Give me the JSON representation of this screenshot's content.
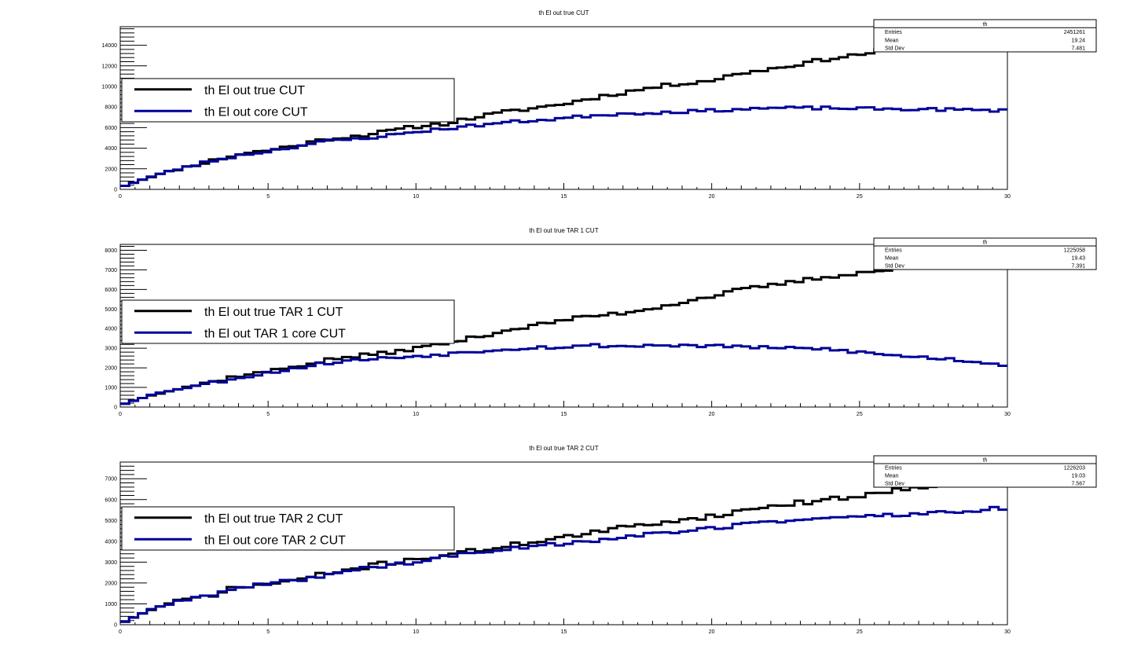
{
  "colors": {
    "black_series": "#000000",
    "blue_series": "#000099",
    "frame": "#000000",
    "background": "#ffffff"
  },
  "chart_data": [
    {
      "type": "line",
      "title": "th El out true CUT",
      "xlabel": "",
      "ylabel": "",
      "xlim": [
        0,
        30
      ],
      "ylim": [
        0,
        15800
      ],
      "grid": false,
      "legend_position": "top-left",
      "x_ticks": [
        "0",
        "5",
        "10",
        "15",
        "20",
        "25",
        "30"
      ],
      "y_ticks": [
        "0",
        "2000",
        "4000",
        "6000",
        "8000",
        "10000",
        "12000",
        "14000"
      ],
      "y_tick_values": [
        0,
        2000,
        4000,
        6000,
        8000,
        10000,
        12000,
        14000
      ],
      "stats": {
        "name": "th",
        "rows": [
          {
            "label": "Entries",
            "value": "2451261"
          },
          {
            "label": "Mean",
            "value": "19.24"
          },
          {
            "label": "Std Dev",
            "value": "7.481"
          }
        ]
      },
      "series": [
        {
          "name": "th El out true CUT",
          "anchors": [
            [
              0,
              200
            ],
            [
              1,
              1200
            ],
            [
              2,
              2000
            ],
            [
              3,
              2700
            ],
            [
              4,
              3400
            ],
            [
              5,
              3800
            ],
            [
              6,
              4300
            ],
            [
              7,
              4900
            ],
            [
              8,
              5200
            ],
            [
              9,
              5600
            ],
            [
              10,
              6100
            ],
            [
              11,
              6400
            ],
            [
              12,
              7000
            ],
            [
              13,
              7500
            ],
            [
              14,
              7900
            ],
            [
              15,
              8300
            ],
            [
              16,
              8900
            ],
            [
              17,
              9400
            ],
            [
              18,
              9900
            ],
            [
              19,
              10300
            ],
            [
              20,
              10600
            ],
            [
              21,
              11300
            ],
            [
              22,
              11700
            ],
            [
              23,
              12200
            ],
            [
              24,
              12700
            ],
            [
              25,
              13100
            ],
            [
              26,
              13600
            ],
            [
              27,
              14100
            ],
            [
              28,
              14600
            ],
            [
              29,
              15000
            ],
            [
              30,
              15300
            ]
          ],
          "noise": 180,
          "seed": 11
        },
        {
          "name": "th El out core CUT",
          "anchors": [
            [
              0,
              200
            ],
            [
              1,
              1200
            ],
            [
              2,
              2000
            ],
            [
              3,
              2700
            ],
            [
              4,
              3300
            ],
            [
              5,
              3700
            ],
            [
              6,
              4200
            ],
            [
              7,
              4700
            ],
            [
              8,
              4900
            ],
            [
              9,
              5200
            ],
            [
              10,
              5600
            ],
            [
              11,
              5900
            ],
            [
              12,
              6200
            ],
            [
              13,
              6500
            ],
            [
              14,
              6700
            ],
            [
              15,
              6900
            ],
            [
              16,
              7200
            ],
            [
              17,
              7350
            ],
            [
              18,
              7450
            ],
            [
              19,
              7550
            ],
            [
              20,
              7650
            ],
            [
              21,
              7800
            ],
            [
              22,
              7900
            ],
            [
              23,
              7900
            ],
            [
              24,
              7900
            ],
            [
              25,
              7850
            ],
            [
              26,
              7800
            ],
            [
              27,
              7800
            ],
            [
              28,
              7750
            ],
            [
              29,
              7700
            ],
            [
              30,
              7650
            ]
          ],
          "noise": 140,
          "seed": 23
        }
      ]
    },
    {
      "type": "line",
      "title": "th El out true TAR 1 CUT",
      "xlabel": "",
      "ylabel": "",
      "xlim": [
        0,
        30
      ],
      "ylim": [
        0,
        8300
      ],
      "grid": false,
      "legend_position": "top-left",
      "x_ticks": [
        "0",
        "5",
        "10",
        "15",
        "20",
        "25",
        "30"
      ],
      "y_ticks": [
        "0",
        "1000",
        "2000",
        "3000",
        "4000",
        "5000",
        "6000",
        "7000",
        "8000"
      ],
      "y_tick_values": [
        0,
        1000,
        2000,
        3000,
        4000,
        5000,
        6000,
        7000,
        8000
      ],
      "stats": {
        "name": "th",
        "rows": [
          {
            "label": "Entries",
            "value": "1225058"
          },
          {
            "label": "Mean",
            "value": "19.43"
          },
          {
            "label": "Std Dev",
            "value": "7.391"
          }
        ]
      },
      "series": [
        {
          "name": "th El out true TAR 1 CUT",
          "anchors": [
            [
              0,
              100
            ],
            [
              1,
              600
            ],
            [
              2,
              950
            ],
            [
              3,
              1250
            ],
            [
              4,
              1600
            ],
            [
              5,
              1800
            ],
            [
              6,
              2100
            ],
            [
              7,
              2400
            ],
            [
              8,
              2600
            ],
            [
              9,
              2750
            ],
            [
              10,
              3000
            ],
            [
              11,
              3250
            ],
            [
              12,
              3550
            ],
            [
              13,
              3900
            ],
            [
              14,
              4150
            ],
            [
              15,
              4450
            ],
            [
              16,
              4650
            ],
            [
              17,
              4800
            ],
            [
              18,
              5050
            ],
            [
              19,
              5350
            ],
            [
              20,
              5650
            ],
            [
              21,
              6000
            ],
            [
              22,
              6200
            ],
            [
              23,
              6450
            ],
            [
              24,
              6650
            ],
            [
              25,
              6850
            ],
            [
              26,
              7000
            ],
            [
              27,
              7200
            ],
            [
              28,
              7400
            ],
            [
              29,
              7550
            ],
            [
              30,
              7650
            ]
          ],
          "noise": 90,
          "seed": 37
        },
        {
          "name": "th El out TAR 1 core CUT",
          "anchors": [
            [
              0,
              100
            ],
            [
              1,
              600
            ],
            [
              2,
              950
            ],
            [
              3,
              1200
            ],
            [
              4,
              1500
            ],
            [
              5,
              1750
            ],
            [
              6,
              2000
            ],
            [
              7,
              2250
            ],
            [
              8,
              2400
            ],
            [
              9,
              2500
            ],
            [
              10,
              2600
            ],
            [
              11,
              2700
            ],
            [
              12,
              2850
            ],
            [
              13,
              2950
            ],
            [
              14,
              3050
            ],
            [
              15,
              3050
            ],
            [
              16,
              3150
            ],
            [
              17,
              3100
            ],
            [
              18,
              3150
            ],
            [
              19,
              3150
            ],
            [
              20,
              3100
            ],
            [
              21,
              3100
            ],
            [
              22,
              3000
            ],
            [
              23,
              3000
            ],
            [
              24,
              2950
            ],
            [
              25,
              2800
            ],
            [
              26,
              2650
            ],
            [
              27,
              2550
            ],
            [
              28,
              2450
            ],
            [
              29,
              2300
            ],
            [
              30,
              2150
            ]
          ],
          "noise": 80,
          "seed": 53
        }
      ]
    },
    {
      "type": "line",
      "title": "th El out true TAR 2 CUT",
      "xlabel": "",
      "ylabel": "",
      "xlim": [
        0,
        30
      ],
      "ylim": [
        0,
        7800
      ],
      "grid": false,
      "legend_position": "top-left",
      "x_ticks": [
        "0",
        "5",
        "10",
        "15",
        "20",
        "25",
        "30"
      ],
      "y_ticks": [
        "0",
        "1000",
        "2000",
        "3000",
        "4000",
        "5000",
        "6000",
        "7000"
      ],
      "y_tick_values": [
        0,
        1000,
        2000,
        3000,
        4000,
        5000,
        6000,
        7000
      ],
      "stats": {
        "name": "th",
        "rows": [
          {
            "label": "Entries",
            "value": "1226203"
          },
          {
            "label": "Mean",
            "value": "19.03"
          },
          {
            "label": "Std Dev",
            "value": "7.567"
          }
        ]
      },
      "series": [
        {
          "name": "th El out true TAR 2 CUT",
          "anchors": [
            [
              0,
              50
            ],
            [
              1,
              700
            ],
            [
              2,
              1150
            ],
            [
              3,
              1400
            ],
            [
              4,
              1800
            ],
            [
              5,
              1950
            ],
            [
              6,
              2150
            ],
            [
              7,
              2450
            ],
            [
              8,
              2700
            ],
            [
              9,
              2950
            ],
            [
              10,
              3150
            ],
            [
              11,
              3350
            ],
            [
              12,
              3550
            ],
            [
              13,
              3750
            ],
            [
              14,
              4000
            ],
            [
              15,
              4200
            ],
            [
              16,
              4400
            ],
            [
              17,
              4650
            ],
            [
              18,
              4850
            ],
            [
              19,
              5050
            ],
            [
              20,
              5200
            ],
            [
              21,
              5450
            ],
            [
              22,
              5700
            ],
            [
              23,
              5850
            ],
            [
              24,
              6000
            ],
            [
              25,
              6200
            ],
            [
              26,
              6400
            ],
            [
              27,
              6600
            ],
            [
              28,
              6850
            ],
            [
              29,
              7000
            ],
            [
              30,
              7150
            ]
          ],
          "noise": 110,
          "seed": 71
        },
        {
          "name": "th El out core TAR 2 CUT",
          "anchors": [
            [
              0,
              50
            ],
            [
              1,
              700
            ],
            [
              2,
              1150
            ],
            [
              3,
              1400
            ],
            [
              4,
              1750
            ],
            [
              5,
              1950
            ],
            [
              6,
              2150
            ],
            [
              7,
              2400
            ],
            [
              8,
              2650
            ],
            [
              9,
              2850
            ],
            [
              10,
              3000
            ],
            [
              11,
              3250
            ],
            [
              12,
              3450
            ],
            [
              13,
              3600
            ],
            [
              14,
              3800
            ],
            [
              15,
              3900
            ],
            [
              16,
              4050
            ],
            [
              17,
              4200
            ],
            [
              18,
              4350
            ],
            [
              19,
              4500
            ],
            [
              20,
              4600
            ],
            [
              21,
              4800
            ],
            [
              22,
              4950
            ],
            [
              23,
              5050
            ],
            [
              24,
              5100
            ],
            [
              25,
              5200
            ],
            [
              26,
              5250
            ],
            [
              27,
              5300
            ],
            [
              28,
              5400
            ],
            [
              29,
              5500
            ],
            [
              30,
              5600
            ]
          ],
          "noise": 90,
          "seed": 89
        }
      ]
    }
  ]
}
